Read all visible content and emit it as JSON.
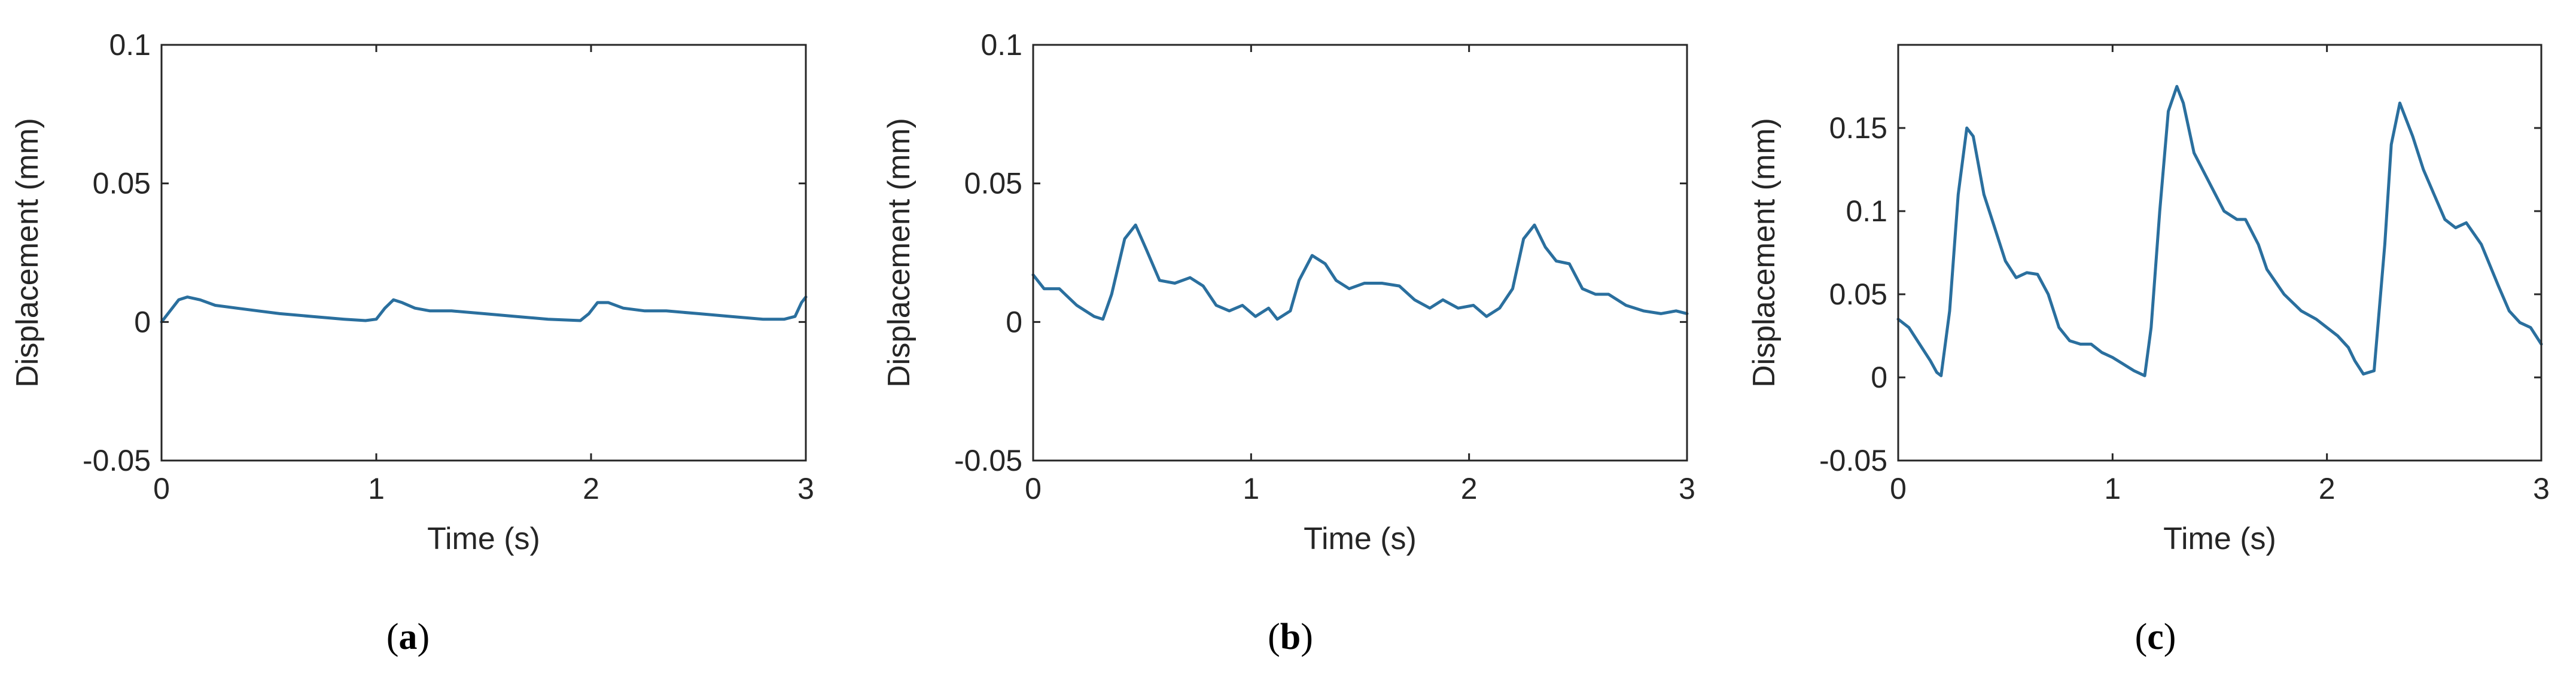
{
  "colors": {
    "line": "#2a6f9e",
    "axes": "#262626",
    "background": "#ffffff"
  },
  "captions": [
    {
      "open": "(",
      "letter": "a",
      "close": ")"
    },
    {
      "open": "(",
      "letter": "b",
      "close": ")"
    },
    {
      "open": "(",
      "letter": "c",
      "close": ")"
    }
  ],
  "chart_data": [
    {
      "type": "line",
      "xlabel": "Time (s)",
      "ylabel": "Displacement (mm)",
      "xlim": [
        0,
        3
      ],
      "ylim": [
        -0.05,
        0.1
      ],
      "xticks": [
        0,
        1,
        2,
        3
      ],
      "yticks": [
        -0.05,
        0,
        0.05,
        0.1
      ],
      "xtick_labels": [
        "0",
        "1",
        "2",
        "3"
      ],
      "ytick_labels": [
        "-0.05",
        "0",
        "0.05",
        "0.1"
      ],
      "grid": false,
      "series": [
        {
          "x": [
            0,
            0.03,
            0.08,
            0.12,
            0.18,
            0.25,
            0.35,
            0.45,
            0.55,
            0.7,
            0.85,
            0.95,
            1.0,
            1.04,
            1.08,
            1.12,
            1.18,
            1.25,
            1.35,
            1.5,
            1.65,
            1.8,
            1.95,
            1.99,
            2.03,
            2.08,
            2.15,
            2.25,
            2.35,
            2.5,
            2.65,
            2.8,
            2.9,
            2.95,
            2.98,
            3.0
          ],
          "y": [
            0.0,
            0.003,
            0.008,
            0.009,
            0.008,
            0.006,
            0.005,
            0.004,
            0.003,
            0.002,
            0.001,
            0.0005,
            0.001,
            0.005,
            0.008,
            0.007,
            0.005,
            0.004,
            0.004,
            0.003,
            0.002,
            0.001,
            0.0005,
            0.003,
            0.007,
            0.007,
            0.005,
            0.004,
            0.004,
            0.003,
            0.002,
            0.001,
            0.001,
            0.002,
            0.007,
            0.009
          ]
        }
      ]
    },
    {
      "type": "line",
      "xlabel": "Time (s)",
      "ylabel": "Displacement (mm)",
      "xlim": [
        0,
        3
      ],
      "ylim": [
        -0.05,
        0.1
      ],
      "xticks": [
        0,
        1,
        2,
        3
      ],
      "yticks": [
        -0.05,
        0,
        0.05,
        0.1
      ],
      "xtick_labels": [
        "0",
        "1",
        "2",
        "3"
      ],
      "ytick_labels": [
        "-0.05",
        "0",
        "0.05",
        "0.1"
      ],
      "grid": false,
      "series": [
        {
          "x": [
            0,
            0.05,
            0.12,
            0.2,
            0.28,
            0.32,
            0.36,
            0.42,
            0.47,
            0.52,
            0.58,
            0.65,
            0.72,
            0.78,
            0.84,
            0.9,
            0.96,
            1.02,
            1.08,
            1.12,
            1.18,
            1.22,
            1.28,
            1.34,
            1.39,
            1.45,
            1.52,
            1.6,
            1.68,
            1.75,
            1.82,
            1.88,
            1.95,
            2.02,
            2.08,
            2.14,
            2.2,
            2.25,
            2.3,
            2.35,
            2.4,
            2.46,
            2.52,
            2.58,
            2.64,
            2.72,
            2.8,
            2.88,
            2.95,
            3.0
          ],
          "y": [
            0.017,
            0.012,
            0.012,
            0.006,
            0.002,
            0.001,
            0.01,
            0.03,
            0.035,
            0.026,
            0.015,
            0.014,
            0.016,
            0.013,
            0.006,
            0.004,
            0.006,
            0.002,
            0.005,
            0.001,
            0.004,
            0.015,
            0.024,
            0.021,
            0.015,
            0.012,
            0.014,
            0.014,
            0.013,
            0.008,
            0.005,
            0.008,
            0.005,
            0.006,
            0.002,
            0.005,
            0.012,
            0.03,
            0.035,
            0.027,
            0.022,
            0.021,
            0.012,
            0.01,
            0.01,
            0.006,
            0.004,
            0.003,
            0.004,
            0.003
          ]
        }
      ]
    },
    {
      "type": "line",
      "xlabel": "Time (s)",
      "ylabel": "Displacement (mm)",
      "xlim": [
        0,
        3
      ],
      "ylim": [
        -0.05,
        0.2
      ],
      "xticks": [
        0,
        1,
        2,
        3
      ],
      "yticks": [
        -0.05,
        0,
        0.05,
        0.1,
        0.15
      ],
      "xtick_labels": [
        "0",
        "1",
        "2",
        "3"
      ],
      "ytick_labels": [
        "-0.05",
        "0",
        "0.05",
        "0.1",
        "0.15"
      ],
      "grid": false,
      "series": [
        {
          "x": [
            0,
            0.05,
            0.1,
            0.15,
            0.18,
            0.2,
            0.24,
            0.28,
            0.32,
            0.35,
            0.4,
            0.45,
            0.5,
            0.55,
            0.6,
            0.65,
            0.7,
            0.75,
            0.8,
            0.85,
            0.9,
            0.95,
            1.0,
            1.05,
            1.1,
            1.15,
            1.18,
            1.22,
            1.26,
            1.3,
            1.33,
            1.38,
            1.42,
            1.48,
            1.52,
            1.58,
            1.62,
            1.68,
            1.72,
            1.8,
            1.88,
            1.95,
            2.0,
            2.05,
            2.1,
            2.13,
            2.17,
            2.22,
            2.27,
            2.3,
            2.34,
            2.4,
            2.45,
            2.5,
            2.55,
            2.6,
            2.65,
            2.72,
            2.8,
            2.85,
            2.9,
            2.95,
            3.0
          ],
          "y": [
            0.035,
            0.03,
            0.02,
            0.01,
            0.003,
            0.001,
            0.04,
            0.11,
            0.15,
            0.145,
            0.11,
            0.09,
            0.07,
            0.06,
            0.063,
            0.062,
            0.05,
            0.03,
            0.022,
            0.02,
            0.02,
            0.015,
            0.012,
            0.008,
            0.004,
            0.001,
            0.03,
            0.1,
            0.16,
            0.175,
            0.165,
            0.135,
            0.125,
            0.11,
            0.1,
            0.095,
            0.095,
            0.08,
            0.065,
            0.05,
            0.04,
            0.035,
            0.03,
            0.025,
            0.018,
            0.01,
            0.002,
            0.004,
            0.08,
            0.14,
            0.165,
            0.145,
            0.125,
            0.11,
            0.095,
            0.09,
            0.093,
            0.08,
            0.055,
            0.04,
            0.033,
            0.03,
            0.02
          ]
        }
      ]
    }
  ]
}
